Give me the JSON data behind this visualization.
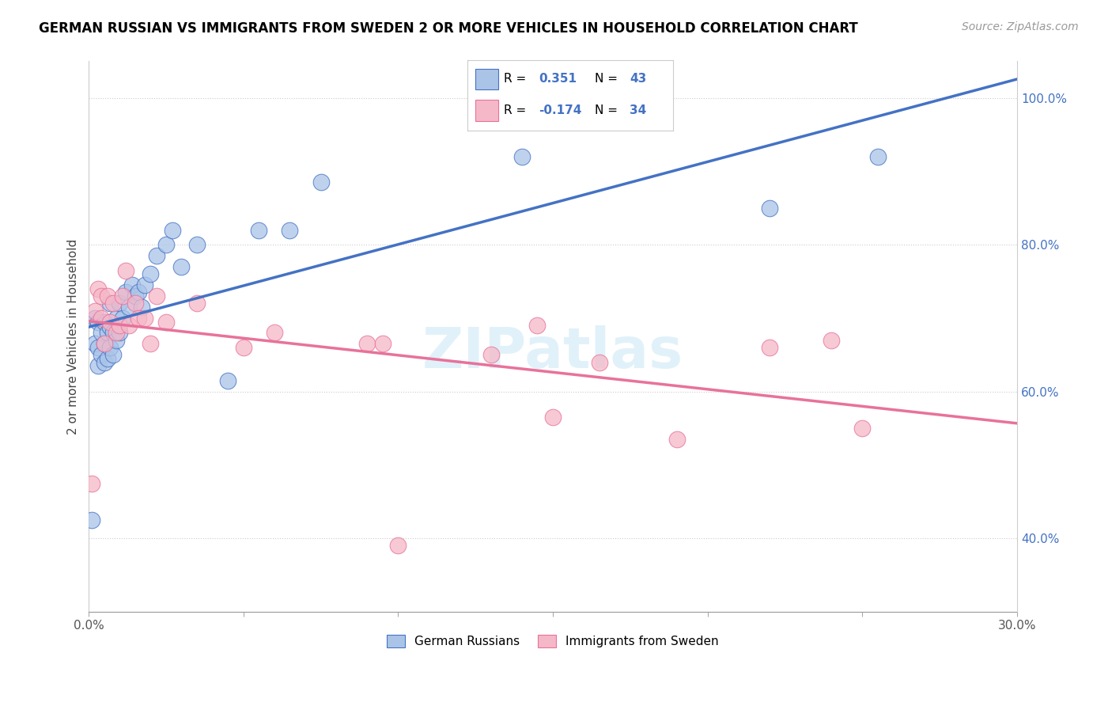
{
  "title": "GERMAN RUSSIAN VS IMMIGRANTS FROM SWEDEN 2 OR MORE VEHICLES IN HOUSEHOLD CORRELATION CHART",
  "source": "Source: ZipAtlas.com",
  "ylabel": "2 or more Vehicles in Household",
  "xlim": [
    0.0,
    0.3
  ],
  "ylim": [
    0.3,
    1.05
  ],
  "blue_R": 0.351,
  "blue_N": 43,
  "pink_R": -0.174,
  "pink_N": 34,
  "blue_color": "#aac4e8",
  "pink_color": "#f5b8c8",
  "blue_line_color": "#4472c4",
  "pink_line_color": "#e8729a",
  "legend_text_color": "#4472c4",
  "watermark": "ZIPatlas",
  "blue_scatter_x": [
    0.001,
    0.002,
    0.002,
    0.003,
    0.003,
    0.003,
    0.004,
    0.004,
    0.005,
    0.005,
    0.005,
    0.006,
    0.006,
    0.007,
    0.007,
    0.007,
    0.008,
    0.008,
    0.009,
    0.009,
    0.01,
    0.01,
    0.011,
    0.012,
    0.013,
    0.014,
    0.015,
    0.016,
    0.017,
    0.018,
    0.02,
    0.022,
    0.025,
    0.027,
    0.03,
    0.035,
    0.045,
    0.055,
    0.065,
    0.075,
    0.14,
    0.22,
    0.255
  ],
  "blue_scatter_y": [
    0.425,
    0.665,
    0.7,
    0.635,
    0.66,
    0.695,
    0.65,
    0.68,
    0.64,
    0.665,
    0.695,
    0.645,
    0.68,
    0.66,
    0.688,
    0.72,
    0.65,
    0.68,
    0.67,
    0.7,
    0.68,
    0.72,
    0.7,
    0.735,
    0.715,
    0.745,
    0.73,
    0.735,
    0.715,
    0.745,
    0.76,
    0.785,
    0.8,
    0.82,
    0.77,
    0.8,
    0.615,
    0.82,
    0.82,
    0.885,
    0.92,
    0.85,
    0.92
  ],
  "pink_scatter_x": [
    0.001,
    0.002,
    0.003,
    0.004,
    0.004,
    0.005,
    0.006,
    0.007,
    0.008,
    0.009,
    0.01,
    0.011,
    0.012,
    0.013,
    0.015,
    0.016,
    0.018,
    0.02,
    0.022,
    0.025,
    0.035,
    0.05,
    0.06,
    0.09,
    0.095,
    0.1,
    0.13,
    0.145,
    0.15,
    0.165,
    0.19,
    0.22,
    0.24,
    0.25
  ],
  "pink_scatter_y": [
    0.475,
    0.71,
    0.74,
    0.7,
    0.73,
    0.665,
    0.73,
    0.695,
    0.72,
    0.68,
    0.69,
    0.73,
    0.765,
    0.69,
    0.72,
    0.7,
    0.7,
    0.665,
    0.73,
    0.695,
    0.72,
    0.66,
    0.68,
    0.665,
    0.665,
    0.39,
    0.65,
    0.69,
    0.565,
    0.64,
    0.535,
    0.66,
    0.67,
    0.55
  ],
  "legend_labels": [
    "German Russians",
    "Immigrants from Sweden"
  ],
  "ytick_positions": [
    0.4,
    0.6,
    0.8,
    1.0
  ],
  "ytick_labels": [
    "40.0%",
    "60.0%",
    "80.0%",
    "100.0%"
  ],
  "xtick_positions": [
    0.0,
    0.3
  ],
  "xtick_labels": [
    "0.0%",
    "30.0%"
  ]
}
